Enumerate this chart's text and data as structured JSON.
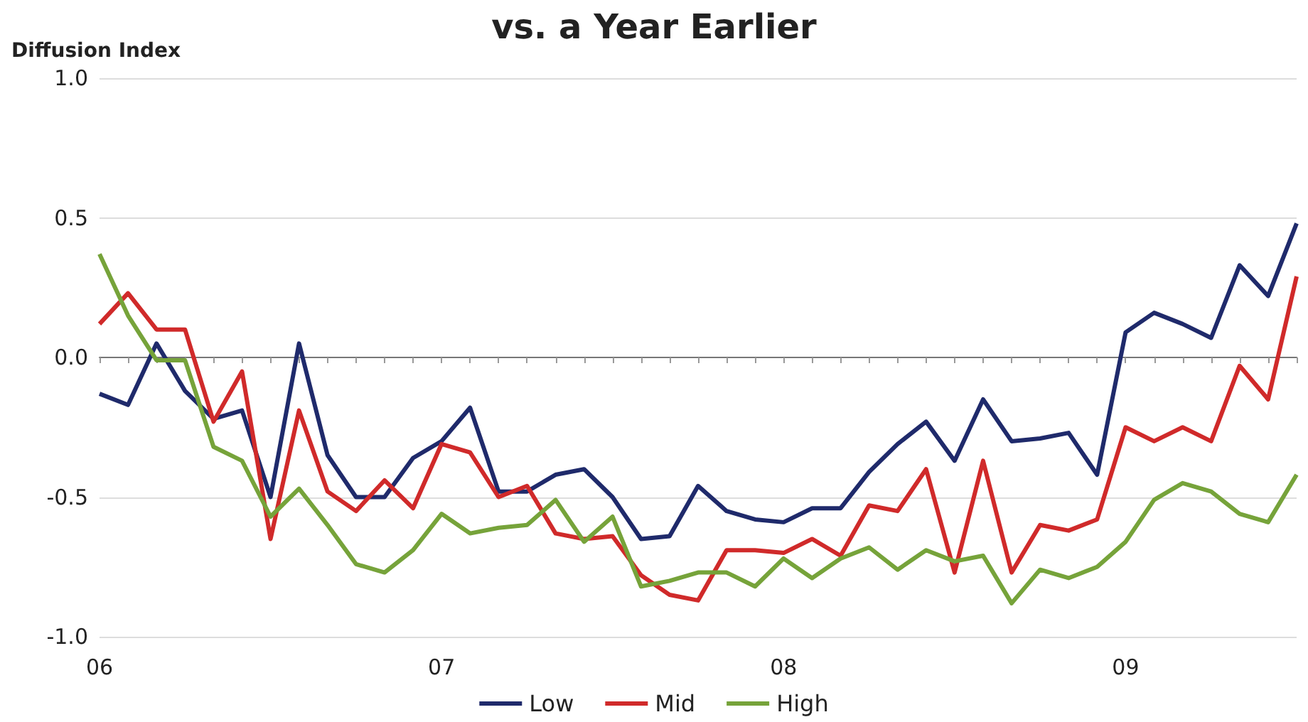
{
  "chart_data": {
    "type": "line",
    "title": "vs. a Year Earlier",
    "ylabel": "Diffusion Index",
    "categories": [
      "06",
      null,
      null,
      null,
      null,
      null,
      null,
      null,
      null,
      null,
      null,
      null,
      "07",
      null,
      null,
      null,
      null,
      null,
      null,
      null,
      null,
      null,
      null,
      null,
      "08",
      null,
      null,
      null,
      null,
      null,
      null,
      null,
      null,
      null,
      null,
      null,
      "09",
      null,
      null,
      null,
      null,
      null,
      null
    ],
    "series": [
      {
        "name": "Low",
        "color": "#1f2a6b",
        "values": [
          -0.13,
          -0.17,
          0.05,
          -0.12,
          -0.22,
          -0.19,
          -0.5,
          0.05,
          -0.35,
          -0.5,
          -0.5,
          -0.36,
          -0.3,
          -0.18,
          -0.48,
          -0.48,
          -0.42,
          -0.4,
          -0.5,
          -0.65,
          -0.64,
          -0.46,
          -0.55,
          -0.58,
          -0.59,
          -0.54,
          -0.54,
          -0.41,
          -0.31,
          -0.23,
          -0.37,
          -0.15,
          -0.3,
          -0.29,
          -0.27,
          -0.42,
          0.09,
          0.16,
          0.12,
          0.07,
          0.33,
          0.22,
          0.48
        ]
      },
      {
        "name": "Mid",
        "color": "#d02a2a",
        "values": [
          0.12,
          0.23,
          0.1,
          0.1,
          -0.23,
          -0.05,
          -0.65,
          -0.19,
          -0.48,
          -0.55,
          -0.44,
          -0.54,
          -0.31,
          -0.34,
          -0.5,
          -0.46,
          -0.63,
          -0.65,
          -0.64,
          -0.78,
          -0.85,
          -0.87,
          -0.69,
          -0.69,
          -0.7,
          -0.65,
          -0.71,
          -0.53,
          -0.55,
          -0.4,
          -0.77,
          -0.37,
          -0.77,
          -0.6,
          -0.62,
          -0.58,
          -0.25,
          -0.3,
          -0.25,
          -0.3,
          -0.03,
          -0.15,
          0.29
        ]
      },
      {
        "name": "High",
        "color": "#76a33a",
        "values": [
          0.37,
          0.15,
          -0.01,
          -0.01,
          -0.32,
          -0.37,
          -0.57,
          -0.47,
          -0.6,
          -0.74,
          -0.77,
          -0.69,
          -0.56,
          -0.63,
          -0.61,
          -0.6,
          -0.51,
          -0.66,
          -0.57,
          -0.82,
          -0.8,
          -0.77,
          -0.77,
          -0.82,
          -0.72,
          -0.79,
          -0.72,
          -0.68,
          -0.76,
          -0.69,
          -0.73,
          -0.71,
          -0.88,
          -0.76,
          -0.79,
          -0.75,
          -0.66,
          -0.51,
          -0.45,
          -0.48,
          -0.56,
          -0.59,
          -0.42
        ]
      }
    ],
    "ylim": [
      -1,
      1
    ],
    "yticks": [
      {
        "value": -1,
        "label": "-1.0"
      },
      {
        "value": -0.5,
        "label": "-0.5"
      },
      {
        "value": 0,
        "label": "0.0"
      },
      {
        "value": 0.5,
        "label": "0.5"
      },
      {
        "value": 1,
        "label": "1.0"
      }
    ],
    "grid": "y",
    "legend": "bottom",
    "marker": "none",
    "line_style": "solid"
  }
}
